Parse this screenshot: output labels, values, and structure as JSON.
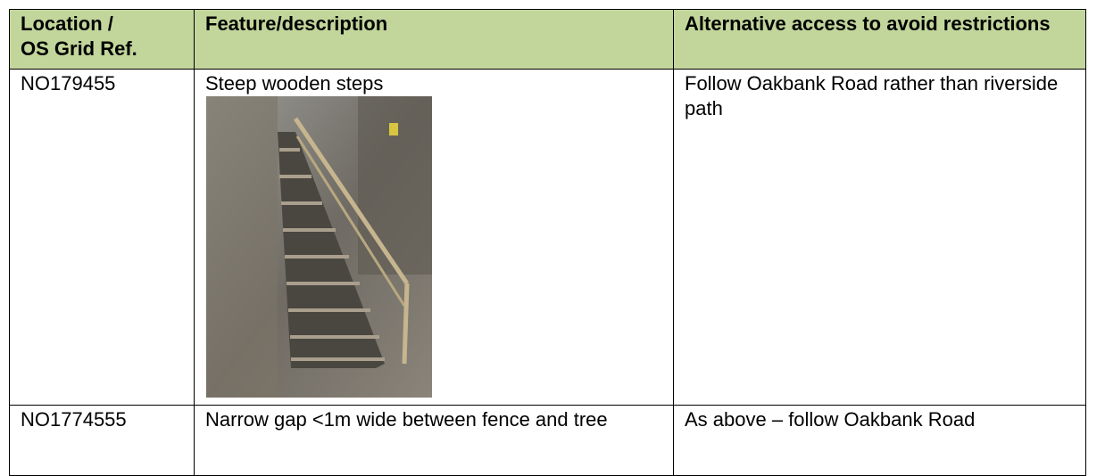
{
  "table": {
    "header": [
      "Location / OS Grid Ref.",
      "Feature/description",
      "Alternative access to avoid restrictions"
    ],
    "rows": [
      [
        "NO179455",
        "Steep wooden steps",
        "Follow Oakbank Road rather than riverside path"
      ],
      [
        "NO1774555",
        "Narrow gap <1m wide between fence and tree",
        "As above – follow Oakbank Road"
      ]
    ]
  }
}
